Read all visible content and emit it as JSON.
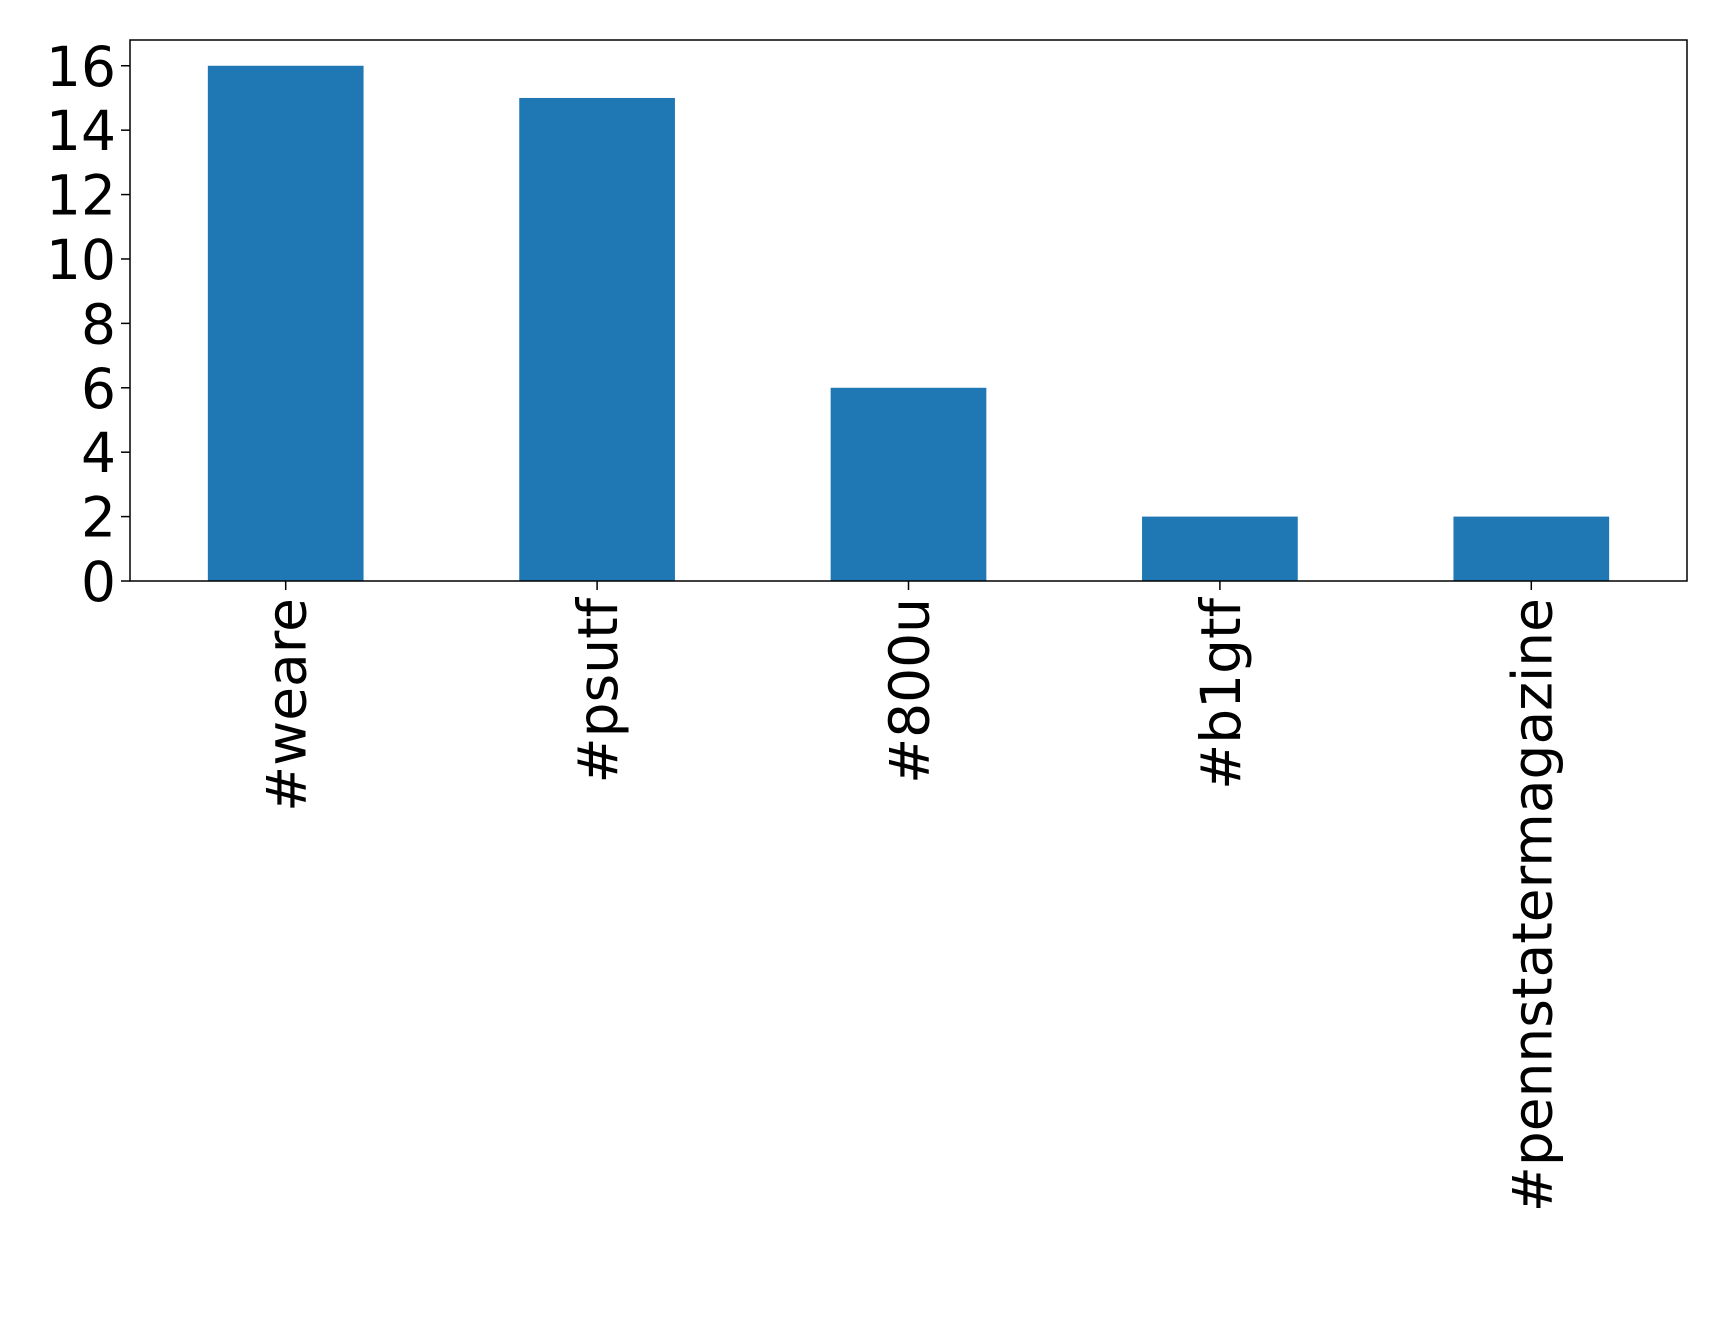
{
  "chart_data": {
    "type": "bar",
    "categories": [
      "#weare",
      "#psutf",
      "#800u",
      "#b1gtf",
      "#pennstatermagazine"
    ],
    "values": [
      16,
      15,
      6,
      2,
      2
    ],
    "color": "#1f77b4",
    "ylim": [
      0,
      16.8
    ],
    "yticks": [
      0,
      2,
      4,
      6,
      8,
      10,
      12,
      14,
      16
    ],
    "grid": false
  }
}
